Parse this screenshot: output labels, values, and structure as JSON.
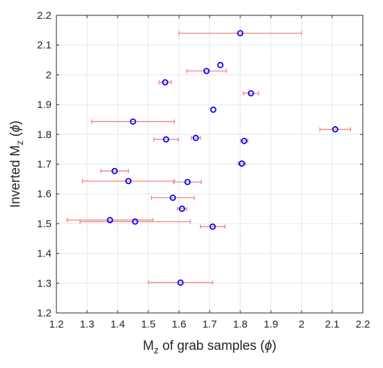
{
  "chart_data": {
    "type": "scatter",
    "title": "",
    "xlabel": {
      "base": "M",
      "sub": "z",
      "rest": " of grab samples (",
      "sym": "ϕ",
      "end": ")"
    },
    "ylabel": {
      "base": "Inverted M",
      "sub": "z",
      "rest": " (",
      "sym": "ϕ",
      "end": ")"
    },
    "xlim": [
      1.2,
      2.2
    ],
    "ylim": [
      1.2,
      2.2
    ],
    "xticks": [
      "1.2",
      "1.3",
      "1.4",
      "1.5",
      "1.6",
      "1.7",
      "1.8",
      "1.9",
      "2",
      "2.1",
      "2.2"
    ],
    "yticks": [
      "1.2",
      "1.3",
      "1.4",
      "1.5",
      "1.6",
      "1.7",
      "1.8",
      "1.9",
      "2",
      "2.1",
      "2.2"
    ],
    "grid": true,
    "marker_color": "#0000ff",
    "errorbar_color": "#f08080",
    "points": [
      {
        "x": 1.8,
        "y": 2.14,
        "xerr": 0.2
      },
      {
        "x": 1.735,
        "y": 2.033,
        "xerr": 0.0
      },
      {
        "x": 1.69,
        "y": 2.013,
        "xerr": 0.065
      },
      {
        "x": 1.555,
        "y": 1.975,
        "xerr": 0.02
      },
      {
        "x": 1.835,
        "y": 1.938,
        "xerr": 0.025
      },
      {
        "x": 1.712,
        "y": 1.883,
        "xerr": 0.0
      },
      {
        "x": 1.45,
        "y": 1.843,
        "xerr": 0.135
      },
      {
        "x": 2.11,
        "y": 1.817,
        "xerr": 0.05
      },
      {
        "x": 1.655,
        "y": 1.788,
        "xerr": 0.015
      },
      {
        "x": 1.558,
        "y": 1.783,
        "xerr": 0.04
      },
      {
        "x": 1.813,
        "y": 1.778,
        "xerr": 0.012
      },
      {
        "x": 1.805,
        "y": 1.702,
        "xerr": 0.012
      },
      {
        "x": 1.39,
        "y": 1.677,
        "xerr": 0.045
      },
      {
        "x": 1.435,
        "y": 1.643,
        "xerr": 0.15
      },
      {
        "x": 1.628,
        "y": 1.64,
        "xerr": 0.045
      },
      {
        "x": 1.58,
        "y": 1.587,
        "xerr": 0.07
      },
      {
        "x": 1.61,
        "y": 1.55,
        "xerr": 0.015
      },
      {
        "x": 1.375,
        "y": 1.512,
        "xerr": 0.14
      },
      {
        "x": 1.457,
        "y": 1.507,
        "xerr": 0.18
      },
      {
        "x": 1.71,
        "y": 1.49,
        "xerr": 0.04
      },
      {
        "x": 1.605,
        "y": 1.302,
        "xerr": 0.105
      }
    ]
  }
}
